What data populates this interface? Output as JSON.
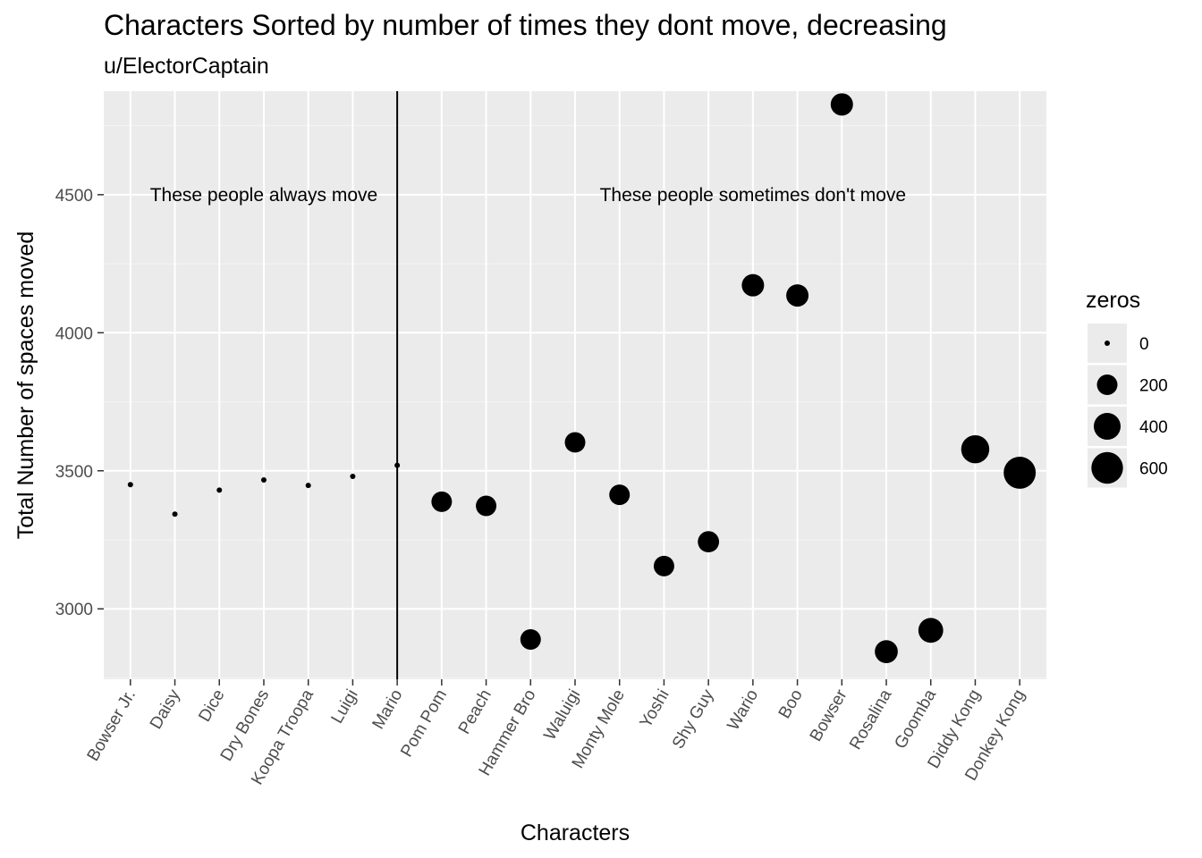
{
  "chart_data": {
    "type": "scatter",
    "title": "Characters Sorted by number of times they dont move, decreasing",
    "subtitle": "u/ElectorCaptain",
    "xlabel": "Characters",
    "ylabel": "Total Number of spaces moved",
    "ylim": [
      2745,
      4875
    ],
    "yticks": [
      3000,
      3500,
      4000,
      4500
    ],
    "categories": [
      "Bowser Jr.",
      "Daisy",
      "Dice",
      "Dry Bones",
      "Koopa Troopa",
      "Luigi",
      "Mario",
      "Pom Pom",
      "Peach",
      "Hammer Bro",
      "Waluigi",
      "Monty Mole",
      "Yoshi",
      "Shy Guy",
      "Wario",
      "Boo",
      "Bowser",
      "Rosalina",
      "Goomba",
      "Diddy Kong",
      "Donkey Kong"
    ],
    "values": [
      3450,
      3343,
      3430,
      3467,
      3447,
      3480,
      3520,
      3388,
      3373,
      2889,
      3603,
      3413,
      3155,
      3243,
      4172,
      4135,
      4827,
      2845,
      2922,
      3578,
      3493
    ],
    "zeros": [
      0,
      0,
      0,
      0,
      0,
      0,
      0,
      200,
      200,
      200,
      200,
      200,
      200,
      220,
      250,
      250,
      250,
      270,
      330,
      450,
      620
    ],
    "size_legend": {
      "title": "zeros",
      "values": [
        0,
        200,
        400,
        600
      ],
      "labels": [
        "0",
        "200",
        "400",
        "600"
      ]
    },
    "vline_category": "Mario",
    "annotations": [
      {
        "text": "These people always move",
        "x_category": "Dry Bones",
        "y": 4500
      },
      {
        "text": "These people sometimes don't move",
        "x_category": "Wario",
        "y": 4500
      }
    ],
    "grid": true
  },
  "colors": {
    "panel": "#ebebeb",
    "grid_major": "#ffffff",
    "grid_minor": "#f5f5f5",
    "point": "#000000",
    "tick_text": "#4d4d4d"
  }
}
